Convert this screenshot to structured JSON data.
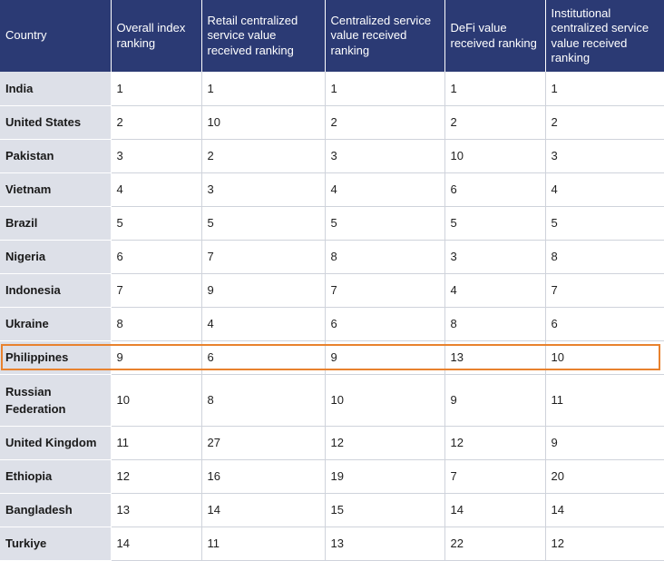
{
  "table": {
    "headers": [
      "Country",
      "Overall index ranking",
      "Retail centralized service value received ranking",
      "Centralized service value received ranking",
      "DeFi value received ranking",
      "Institutional centralized service value received ranking"
    ],
    "rows": [
      {
        "country": "India",
        "values": [
          "1",
          "1",
          "1",
          "1",
          "1"
        ]
      },
      {
        "country": "United States",
        "values": [
          "2",
          "10",
          "2",
          "2",
          "2"
        ]
      },
      {
        "country": "Pakistan",
        "values": [
          "3",
          "2",
          "3",
          "10",
          "3"
        ]
      },
      {
        "country": "Vietnam",
        "values": [
          "4",
          "3",
          "4",
          "6",
          "4"
        ]
      },
      {
        "country": "Brazil",
        "values": [
          "5",
          "5",
          "5",
          "5",
          "5"
        ]
      },
      {
        "country": "Nigeria",
        "values": [
          "6",
          "7",
          "8",
          "3",
          "8"
        ]
      },
      {
        "country": "Indonesia",
        "values": [
          "7",
          "9",
          "7",
          "4",
          "7"
        ]
      },
      {
        "country": "Ukraine",
        "values": [
          "8",
          "4",
          "6",
          "8",
          "6"
        ]
      },
      {
        "country": "Philippines",
        "values": [
          "9",
          "6",
          "9",
          "13",
          "10"
        ],
        "highlighted": true
      },
      {
        "country": "Russian Federation",
        "values": [
          "10",
          "8",
          "10",
          "9",
          "11"
        ]
      },
      {
        "country": "United Kingdom",
        "values": [
          "11",
          "27",
          "12",
          "12",
          "9"
        ]
      },
      {
        "country": "Ethiopia",
        "values": [
          "12",
          "16",
          "19",
          "7",
          "20"
        ]
      },
      {
        "country": "Bangladesh",
        "values": [
          "13",
          "14",
          "15",
          "14",
          "14"
        ]
      },
      {
        "country": "Turkiye",
        "values": [
          "14",
          "11",
          "13",
          "22",
          "12"
        ]
      }
    ]
  },
  "colors": {
    "header_bg": "#2b3a74",
    "country_col_bg": "#dde0e8",
    "highlight": "#e8822e"
  }
}
